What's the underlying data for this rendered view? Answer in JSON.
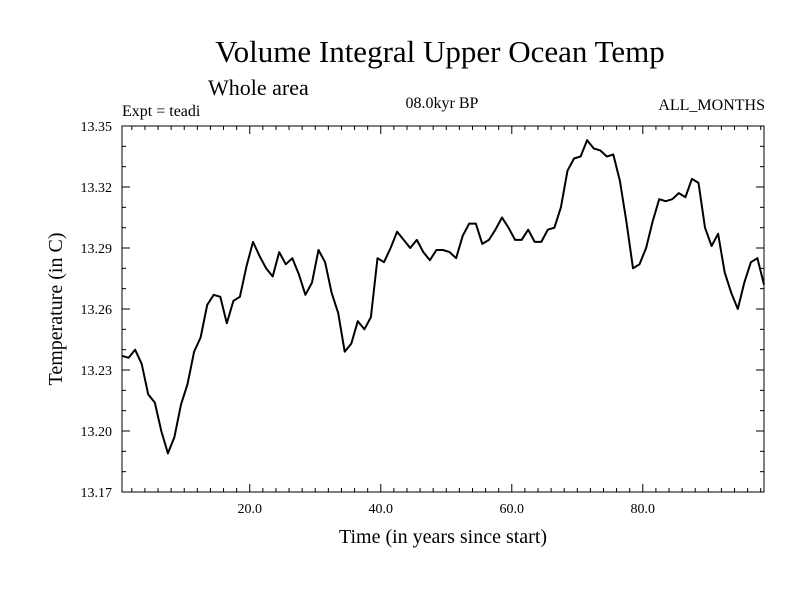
{
  "chart_data": {
    "type": "line",
    "title": "Volume Integral Upper Ocean Temp",
    "subtitle": "Whole area",
    "annotations": {
      "left": "Expt = teadi",
      "center": "08.0kyr BP",
      "right": "ALL_MONTHS"
    },
    "xlabel": "Time (in years since start)",
    "ylabel": "Temperature (in C)",
    "xlim": [
      0.5,
      98.5
    ],
    "ylim": [
      13.17,
      13.35
    ],
    "x_ticks": [
      20,
      40,
      60,
      80
    ],
    "x_tick_labels": [
      "20.0",
      "40.0",
      "60.0",
      "80.0"
    ],
    "y_ticks": [
      13.17,
      13.2,
      13.23,
      13.26,
      13.29,
      13.32,
      13.35
    ],
    "y_tick_labels": [
      "13.17",
      "13.20",
      "13.23",
      "13.26",
      "13.29",
      "13.32",
      "13.35"
    ],
    "grid": false,
    "series": [
      {
        "name": "Temperature",
        "x": [
          0.5,
          1.5,
          2.5,
          3.5,
          4.5,
          5.5,
          6.5,
          7.5,
          8.5,
          9.5,
          10.5,
          11.5,
          12.5,
          13.5,
          14.5,
          15.5,
          16.5,
          17.5,
          18.5,
          19.5,
          20.5,
          21.5,
          22.5,
          23.5,
          24.5,
          25.5,
          26.5,
          27.5,
          28.5,
          29.5,
          30.5,
          31.5,
          32.5,
          33.5,
          34.5,
          35.5,
          36.5,
          37.5,
          38.5,
          39.5,
          40.5,
          41.5,
          42.5,
          43.5,
          44.5,
          45.5,
          46.5,
          47.5,
          48.5,
          49.5,
          50.5,
          51.5,
          52.5,
          53.5,
          54.5,
          55.5,
          56.5,
          57.5,
          58.5,
          59.5,
          60.5,
          61.5,
          62.5,
          63.5,
          64.5,
          65.5,
          66.5,
          67.5,
          68.5,
          69.5,
          70.5,
          71.5,
          72.5,
          73.5,
          74.5,
          75.5,
          76.5,
          77.5,
          78.5,
          79.5,
          80.5,
          81.5,
          82.5,
          83.5,
          84.5,
          85.5,
          86.5,
          87.5,
          88.5,
          89.5,
          90.5,
          91.5,
          92.5,
          93.5,
          94.5,
          95.5,
          96.5,
          97.5,
          98.5
        ],
        "values": [
          13.237,
          13.236,
          13.24,
          13.233,
          13.218,
          13.214,
          13.2,
          13.189,
          13.197,
          13.213,
          13.223,
          13.239,
          13.246,
          13.262,
          13.267,
          13.266,
          13.253,
          13.264,
          13.266,
          13.281,
          13.293,
          13.286,
          13.28,
          13.276,
          13.288,
          13.282,
          13.285,
          13.277,
          13.267,
          13.273,
          13.289,
          13.283,
          13.268,
          13.258,
          13.239,
          13.243,
          13.254,
          13.25,
          13.256,
          13.285,
          13.283,
          13.29,
          13.298,
          13.294,
          13.29,
          13.294,
          13.288,
          13.284,
          13.289,
          13.289,
          13.288,
          13.285,
          13.296,
          13.302,
          13.302,
          13.292,
          13.294,
          13.299,
          13.305,
          13.3,
          13.294,
          13.294,
          13.299,
          13.293,
          13.293,
          13.299,
          13.3,
          13.31,
          13.328,
          13.334,
          13.335,
          13.343,
          13.339,
          13.338,
          13.335,
          13.336,
          13.323,
          13.303,
          13.28,
          13.282,
          13.29,
          13.303,
          13.314,
          13.313,
          13.314,
          13.317,
          13.315,
          13.324,
          13.322,
          13.3,
          13.291,
          13.297,
          13.278,
          13.268,
          13.26,
          13.273,
          13.283,
          13.285,
          13.272
        ]
      }
    ]
  }
}
